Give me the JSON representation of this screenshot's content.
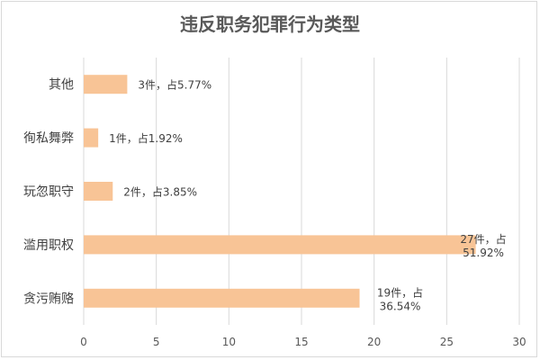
{
  "chart_data": {
    "type": "bar",
    "orientation": "horizontal",
    "title": "违反职务犯罪行为类型",
    "categories": [
      "其他",
      "徇私舞弊",
      "玩忽职守",
      "滥用职权",
      "贪污贿赂"
    ],
    "values": [
      3,
      1,
      2,
      27,
      19
    ],
    "data_labels": [
      [
        "3件，占5.77%"
      ],
      [
        "1件，占1.92%"
      ],
      [
        "2件，占3.85%"
      ],
      [
        "27件，占",
        "51.92%"
      ],
      [
        "19件，占",
        "36.54%"
      ]
    ],
    "xlim": [
      0,
      30
    ],
    "xticks": [
      0,
      5,
      10,
      15,
      20,
      25,
      30
    ],
    "grid": true,
    "bar_color": "#F8C496",
    "grid_color": "#D9D9D9"
  }
}
